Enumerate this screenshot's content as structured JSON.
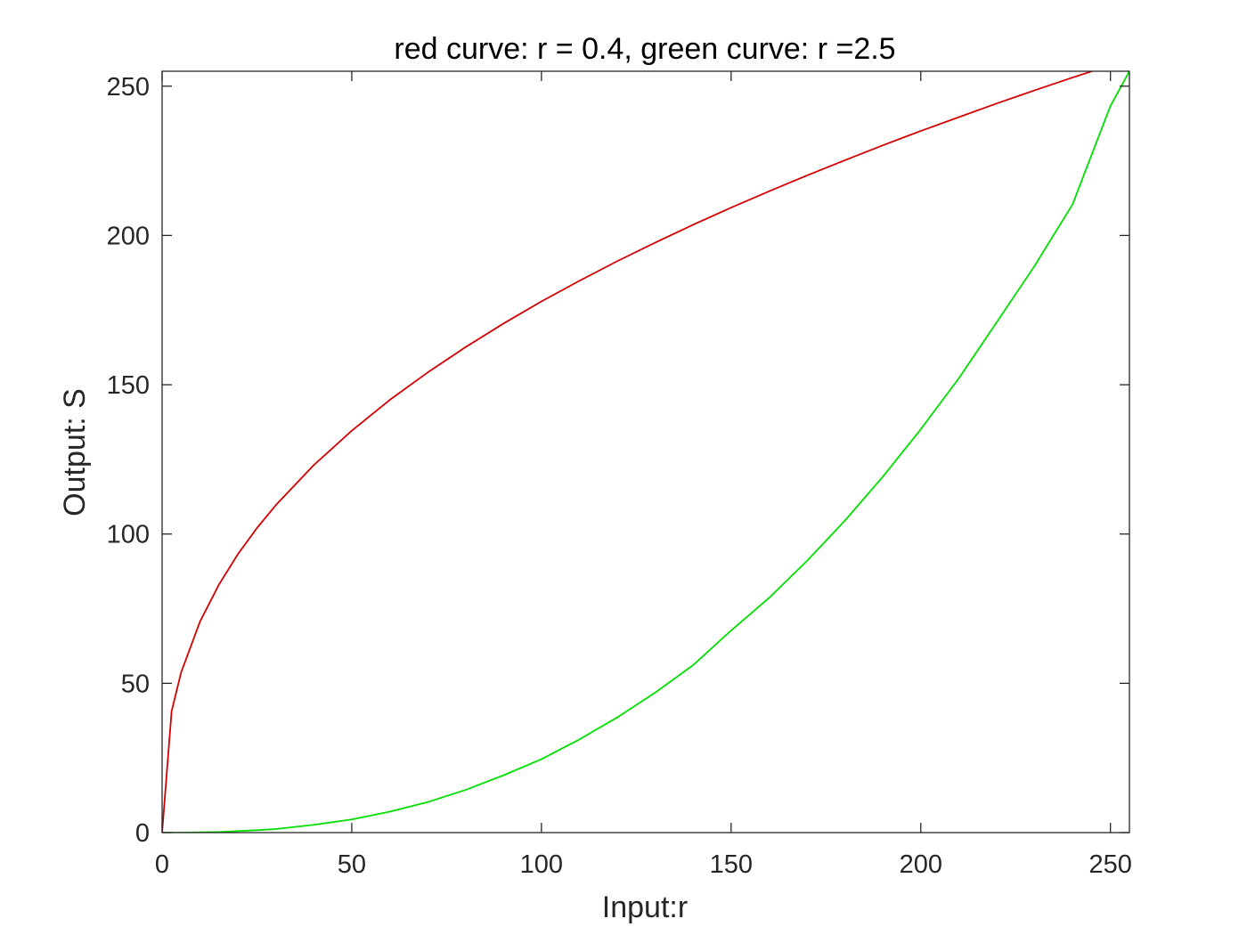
{
  "chart_data": {
    "type": "line",
    "title": "red curve: r = 0.4, green curve: r =2.5",
    "xlabel": "Input:r",
    "ylabel": "Output: S",
    "xlim": [
      0,
      255
    ],
    "ylim": [
      0,
      255
    ],
    "xticks": [
      0,
      50,
      100,
      150,
      200,
      250
    ],
    "yticks": [
      0,
      50,
      100,
      150,
      200,
      250
    ],
    "grid": false,
    "legend": "none",
    "x": [
      0,
      2.5,
      5,
      10,
      15,
      20,
      25,
      30,
      40,
      50,
      60,
      70,
      80,
      90,
      100,
      110,
      120,
      130,
      140,
      150,
      160,
      170,
      180,
      190,
      200,
      210,
      220,
      230,
      240,
      250,
      255
    ],
    "series": [
      {
        "color": "#d40000",
        "values": [
          0,
          40.6,
          53.6,
          70.7,
          83.1,
          93.3,
          102.0,
          109.7,
          123.1,
          134.6,
          144.9,
          154.1,
          162.6,
          170.5,
          177.9,
          184.8,
          191.4,
          197.6,
          203.6,
          209.3,
          214.8,
          220.1,
          225.2,
          230.2,
          235.0,
          239.6,
          244.2,
          248.6,
          252.9,
          257.0,
          255
        ]
      },
      {
        "color": "#00e000",
        "values": [
          0,
          0.0,
          0.0,
          0.1,
          0.2,
          0.5,
          0.8,
          1.2,
          2.6,
          4.4,
          7.0,
          10.2,
          14.3,
          19.2,
          24.6,
          31.2,
          38.6,
          46.9,
          56.1,
          67.7,
          78.6,
          91.0,
          104.5,
          119.2,
          135.1,
          152.1,
          170.9,
          189.8,
          210.4,
          243.4,
          255
        ]
      }
    ]
  }
}
